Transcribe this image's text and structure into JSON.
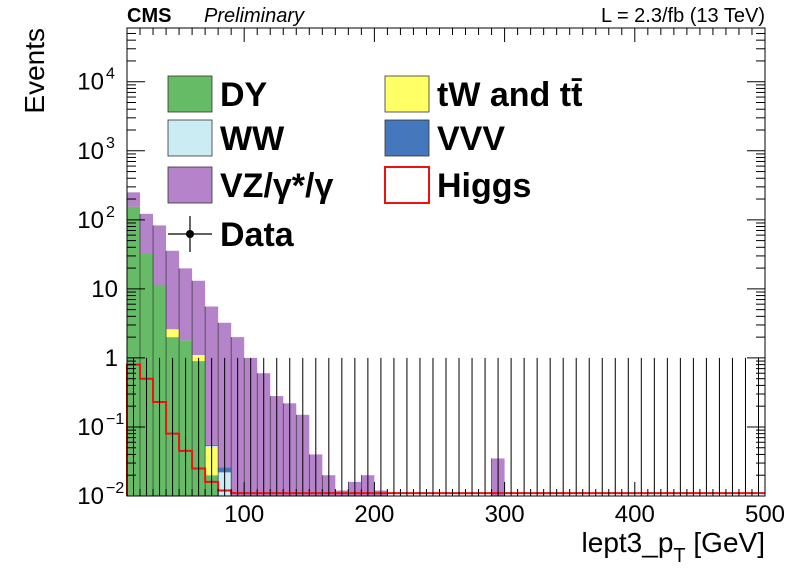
{
  "header": {
    "experiment": "CMS",
    "status": "Preliminary",
    "lumi": "L = 2.3/fb (13 TeV)"
  },
  "chart_data": {
    "type": "bar",
    "stacked": true,
    "xlabel": "lept3_p",
    "xlabel_sub": "T",
    "xlabel_unit": " [GeV]",
    "ylabel": "Events",
    "xlim": [
      10,
      500
    ],
    "ylim": [
      0.01,
      60000
    ],
    "yscale": "log",
    "bin_width": 10,
    "x_ticks": [
      100,
      200,
      300,
      400,
      500
    ],
    "y_ticks": [
      {
        "value": 0.01,
        "base": "10",
        "exp": "−2"
      },
      {
        "value": 0.1,
        "base": "10",
        "exp": "−1"
      },
      {
        "value": 1,
        "label": "1"
      },
      {
        "value": 10,
        "label": "10"
      },
      {
        "value": 100,
        "base": "10",
        "exp": "2"
      },
      {
        "value": 1000,
        "base": "10",
        "exp": "3"
      },
      {
        "value": 10000,
        "base": "10",
        "exp": "4"
      }
    ],
    "bins_lo": [
      10,
      20,
      30,
      40,
      50,
      60,
      70,
      80,
      90,
      100,
      110,
      120,
      130,
      140,
      150,
      160,
      170,
      180,
      190,
      200,
      210,
      220,
      230,
      240,
      250,
      260,
      270,
      280,
      290,
      300,
      310,
      320,
      330,
      340,
      350,
      360,
      370,
      380,
      390,
      400,
      410,
      420,
      430,
      440,
      450,
      460,
      470,
      480,
      490
    ],
    "series": [
      {
        "name": "DY",
        "color": "#66bb66",
        "values": [
          155,
          32,
          11,
          2.0,
          1.8,
          0.9,
          0.02,
          0,
          0,
          0,
          0,
          0,
          0,
          0,
          0,
          0,
          0,
          0,
          0,
          0,
          0,
          0,
          0,
          0,
          0,
          0,
          0,
          0,
          0,
          0,
          0,
          0,
          0,
          0,
          0,
          0,
          0,
          0,
          0,
          0,
          0,
          0,
          0,
          0,
          0,
          0,
          0,
          0,
          0
        ]
      },
      {
        "name": "tW and tt̄",
        "color": "#ffff66",
        "values": [
          0,
          0,
          0,
          0.6,
          0,
          0.2,
          0.03,
          0.01,
          0,
          0,
          0,
          0,
          0,
          0,
          0,
          0,
          0,
          0,
          0,
          0,
          0,
          0,
          0,
          0,
          0,
          0,
          0,
          0,
          0,
          0,
          0,
          0,
          0,
          0,
          0,
          0,
          0,
          0,
          0,
          0,
          0,
          0,
          0,
          0,
          0,
          0,
          0,
          0,
          0
        ]
      },
      {
        "name": "WW",
        "color": "#ccecf4",
        "values": [
          0,
          0,
          0,
          0,
          0,
          0,
          0.003,
          0.012,
          0,
          0,
          0,
          0,
          0,
          0,
          0,
          0,
          0,
          0,
          0,
          0,
          0,
          0,
          0,
          0,
          0,
          0,
          0,
          0,
          0,
          0,
          0,
          0,
          0,
          0,
          0,
          0,
          0,
          0,
          0,
          0,
          0,
          0,
          0,
          0,
          0,
          0,
          0,
          0,
          0
        ]
      },
      {
        "name": "VVV",
        "color": "#4477bb",
        "values": [
          0,
          0,
          0,
          0,
          0,
          0,
          0.002,
          0.004,
          0,
          0,
          0,
          0,
          0,
          0,
          0,
          0,
          0,
          0,
          0,
          0,
          0,
          0,
          0,
          0,
          0,
          0,
          0,
          0,
          0,
          0,
          0,
          0,
          0,
          0,
          0,
          0,
          0,
          0,
          0,
          0,
          0,
          0,
          0,
          0,
          0,
          0,
          0,
          0,
          0
        ]
      },
      {
        "name": "VZ/γ*/γ",
        "color": "#b583c9",
        "values": [
          95,
          90,
          72,
          33,
          18,
          12,
          5.5,
          3.2,
          2.0,
          1.0,
          0.6,
          0.28,
          0.22,
          0.15,
          0.04,
          0.02,
          0.012,
          0.016,
          0.02,
          0.012,
          0,
          0,
          0,
          0,
          0,
          0,
          0,
          0,
          0.035,
          0,
          0,
          0,
          0,
          0,
          0,
          0,
          0,
          0,
          0,
          0,
          0,
          0,
          0,
          0,
          0,
          0,
          0,
          0,
          0
        ]
      }
    ],
    "higgs": {
      "name": "Higgs",
      "color": "#ee1111",
      "values": [
        0.8,
        0.5,
        0.23,
        0.08,
        0.045,
        0.025,
        0.016,
        0.012,
        0.011,
        0.011,
        0.011,
        0.011,
        0.011,
        0.011,
        0.011,
        0.011,
        0.011,
        0.011,
        0.011,
        0.011,
        0.011,
        0.011,
        0.011,
        0.011,
        0.011,
        0.011,
        0.011,
        0.011,
        0.011,
        0.011,
        0.011,
        0.011,
        0.011,
        0.011,
        0.011,
        0.011,
        0.011,
        0.011,
        0.011,
        0.011,
        0.011,
        0.011,
        0.011,
        0.011,
        0.011,
        0.011,
        0.011,
        0.011,
        0.011
      ]
    },
    "data": {
      "name": "Data",
      "values": [
        0,
        0,
        0,
        0,
        0,
        0,
        0,
        0,
        0,
        0,
        0,
        0,
        0,
        0,
        0,
        0,
        0,
        0,
        0,
        0,
        0,
        0,
        0,
        0,
        0,
        0,
        0,
        0,
        0,
        0,
        0,
        0,
        0,
        0,
        0,
        0,
        0,
        0,
        0,
        0,
        0,
        0,
        0,
        0,
        0,
        0,
        0,
        0,
        0
      ],
      "err_up": 1.0
    },
    "legend": {
      "placement": "top-left",
      "entries": [
        {
          "name": "DY",
          "color": "#66bb66",
          "kind": "fill"
        },
        {
          "name": "tW and tt̄",
          "color": "#ffff66",
          "kind": "fill"
        },
        {
          "name": "WW",
          "color": "#ccecf4",
          "kind": "fill"
        },
        {
          "name": "VVV",
          "color": "#4477bb",
          "kind": "fill"
        },
        {
          "name": "VZ/γ*/γ",
          "color": "#b583c9",
          "kind": "fill"
        },
        {
          "name": "Higgs",
          "color": "#ee1111",
          "kind": "line"
        },
        {
          "name": "Data",
          "color": "#000000",
          "kind": "marker"
        }
      ]
    }
  }
}
